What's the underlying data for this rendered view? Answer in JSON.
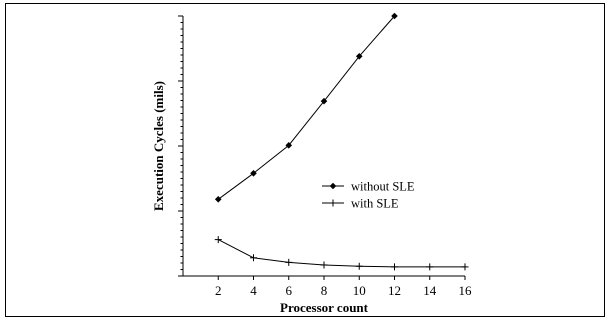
{
  "chart_data": {
    "type": "line",
    "title": "",
    "xlabel": "Processor count",
    "ylabel": "Execution Cycles (mils)",
    "x_ticks": [
      2,
      4,
      6,
      8,
      10,
      12,
      14,
      16
    ],
    "xlim": [
      0,
      16
    ],
    "ylim": [
      0,
      4
    ],
    "y_major_ticks": [
      0,
      1,
      2,
      3,
      4
    ],
    "y_tick_labels_shown": false,
    "grid": false,
    "legend_position": "center-right",
    "series": [
      {
        "name": "without SLE",
        "marker": "diamond",
        "x": [
          2,
          4,
          6,
          8,
          10,
          12
        ],
        "y": [
          1.18,
          1.58,
          2.01,
          2.69,
          3.38,
          4.0
        ]
      },
      {
        "name": "with SLE",
        "marker": "plus",
        "x": [
          2,
          4,
          6,
          8,
          10,
          12,
          14,
          16
        ],
        "y": [
          0.56,
          0.28,
          0.21,
          0.17,
          0.15,
          0.14,
          0.14,
          0.14
        ]
      }
    ]
  }
}
